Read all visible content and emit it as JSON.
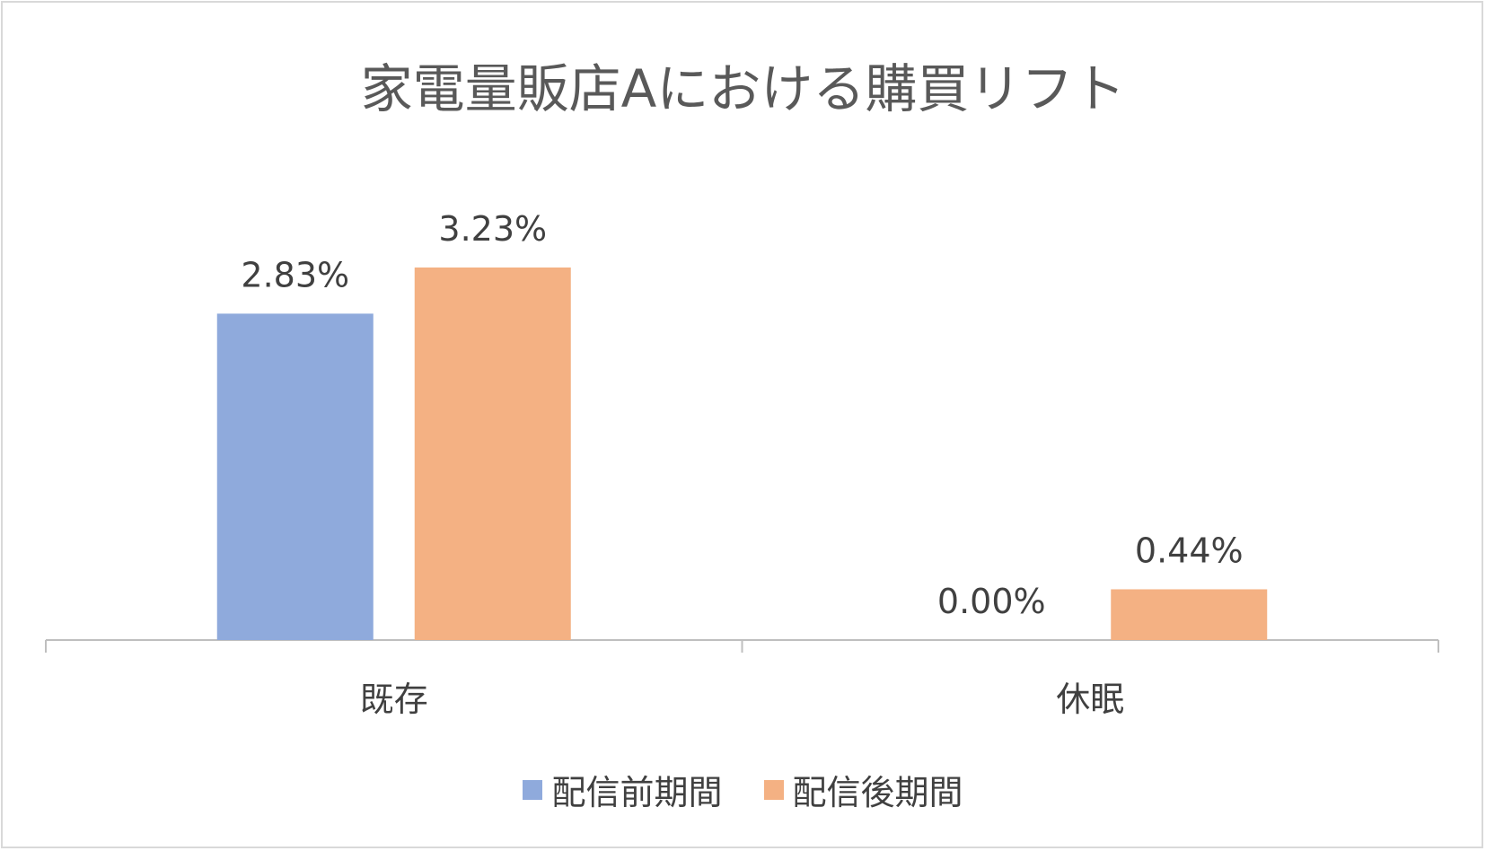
{
  "chart_data": {
    "type": "bar",
    "title": "家電量販店Aにおける購買リフト",
    "categories": [
      "既存",
      "休眠"
    ],
    "series": [
      {
        "name": "配信前期間",
        "values": [
          2.83,
          0.0
        ],
        "labels": [
          "2.83%",
          "0.00%"
        ],
        "color": "#8faadc"
      },
      {
        "name": "配信後期間",
        "values": [
          3.23,
          0.44
        ],
        "labels": [
          "3.23%",
          "0.44%"
        ],
        "color": "#f4b183"
      }
    ],
    "ylim": [
      0,
      3.23
    ],
    "unit": "%",
    "grid": false,
    "legend_position": "bottom",
    "axis_color": "#bfbfbf",
    "label_color": "#404040"
  }
}
